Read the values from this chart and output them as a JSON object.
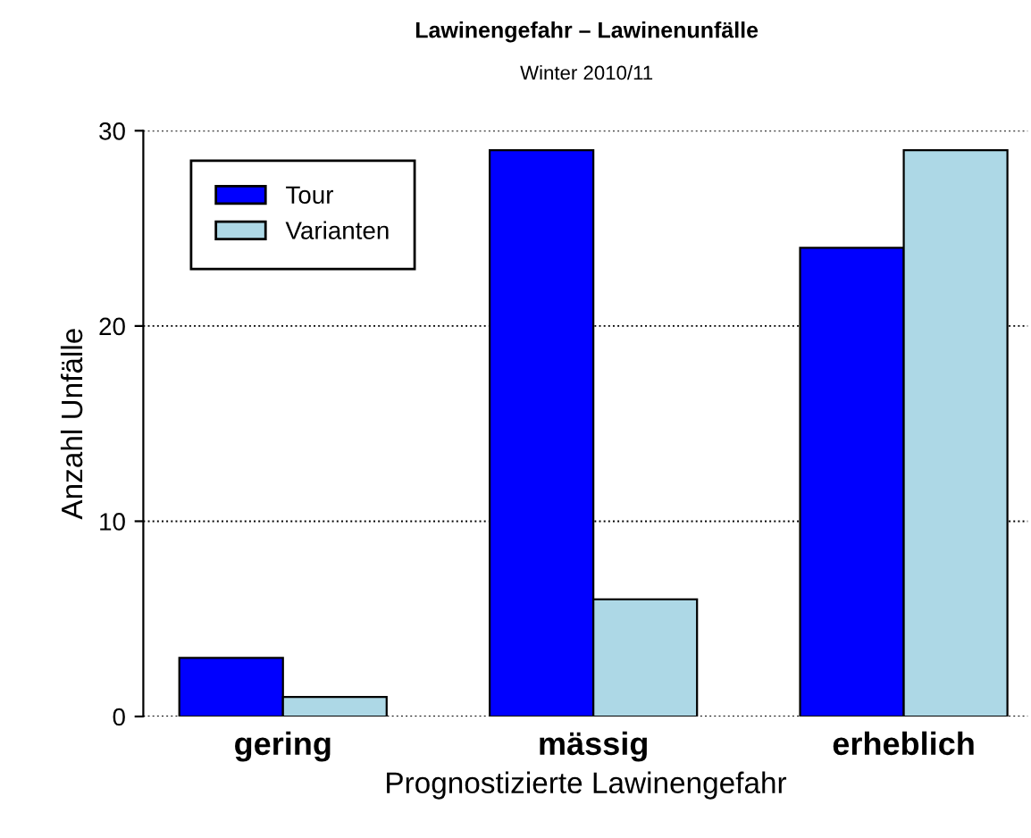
{
  "chart_data": {
    "type": "bar",
    "title": "Lawinengefahr – Lawinenunfälle",
    "subtitle": "Winter 2010/11",
    "xlabel": "Prognostizierte Lawinengefahr",
    "ylabel": "Anzahl Unfälle",
    "categories": [
      "gering",
      "mässig",
      "erheblich"
    ],
    "series": [
      {
        "name": "Tour",
        "color": "#0000ff",
        "values": [
          3,
          29,
          24
        ]
      },
      {
        "name": "Varianten",
        "color": "#add8e6",
        "values": [
          1,
          6,
          29
        ]
      }
    ],
    "ylim": [
      0,
      30
    ],
    "yticks": [
      0,
      10,
      20,
      30
    ],
    "grid": "y",
    "legend": "top left"
  }
}
